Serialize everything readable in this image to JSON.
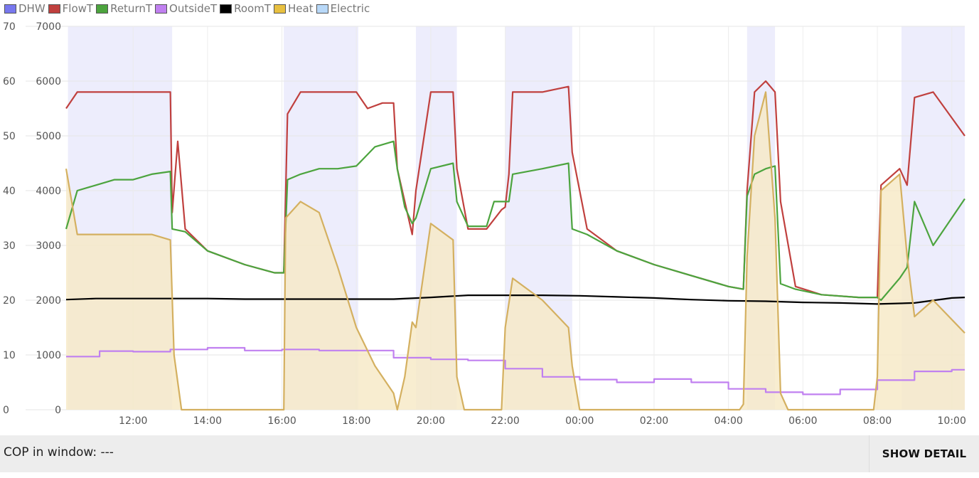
{
  "legend": [
    {
      "name": "DHW",
      "color": "#7878ee"
    },
    {
      "name": "FlowT",
      "color": "#c0403e"
    },
    {
      "name": "ReturnT",
      "color": "#4ca43e"
    },
    {
      "name": "OutsideT",
      "color": "#c080f0"
    },
    {
      "name": "RoomT",
      "color": "#000000"
    },
    {
      "name": "Heat",
      "color": "#e8c040"
    },
    {
      "name": "Electric",
      "color": "#b8d8f8"
    }
  ],
  "footer": {
    "cop_label": "COP in window: ---",
    "detail_button": "SHOW DETAIL"
  },
  "chart_data": {
    "type": "line",
    "x_tick_labels": [
      "12:00",
      "14:00",
      "16:00",
      "18:00",
      "20:00",
      "22:00",
      "00:00",
      "02:00",
      "04:00",
      "06:00",
      "08:00",
      "10:00"
    ],
    "x_tick_hours": [
      12,
      14,
      16,
      18,
      20,
      22,
      24,
      26,
      28,
      30,
      32,
      34
    ],
    "x_range_hours": [
      10.2,
      34.35
    ],
    "y_left": {
      "ticks": [
        0,
        10,
        20,
        30,
        40,
        50,
        60,
        70
      ],
      "range": [
        0,
        70
      ]
    },
    "y_right": {
      "ticks": [
        0,
        1000,
        2000,
        3000,
        4000,
        5000,
        6000,
        7000
      ],
      "range": [
        0,
        7000
      ]
    },
    "grid": true,
    "legend_position": "top-left",
    "dhw_periods": [
      [
        10.25,
        13.05
      ],
      [
        16.05,
        18.05
      ],
      [
        19.6,
        20.7
      ],
      [
        22.0,
        23.8
      ],
      [
        28.5,
        29.25
      ],
      [
        32.65,
        34.35
      ]
    ],
    "series": [
      {
        "name": "FlowT",
        "axis": "left",
        "color": "#c0403e",
        "points": [
          [
            10.2,
            55
          ],
          [
            10.5,
            58
          ],
          [
            11,
            58
          ],
          [
            11.5,
            58
          ],
          [
            12,
            58
          ],
          [
            12.5,
            58
          ],
          [
            13.0,
            58
          ],
          [
            13.05,
            36
          ],
          [
            13.2,
            49
          ],
          [
            13.4,
            33
          ],
          [
            14,
            29
          ],
          [
            15,
            26.5
          ],
          [
            15.8,
            25
          ],
          [
            16.05,
            25
          ],
          [
            16.15,
            54
          ],
          [
            16.5,
            58
          ],
          [
            17,
            58
          ],
          [
            17.5,
            58
          ],
          [
            18,
            58
          ],
          [
            18.3,
            55
          ],
          [
            18.7,
            56
          ],
          [
            19.0,
            56
          ],
          [
            19.1,
            44
          ],
          [
            19.3,
            38
          ],
          [
            19.5,
            32
          ],
          [
            19.6,
            40
          ],
          [
            20.0,
            58
          ],
          [
            20.6,
            58
          ],
          [
            20.7,
            44
          ],
          [
            21.0,
            33
          ],
          [
            21.5,
            33
          ],
          [
            21.9,
            36.5
          ],
          [
            22.0,
            37
          ],
          [
            22.1,
            43
          ],
          [
            22.2,
            58
          ],
          [
            23.0,
            58
          ],
          [
            23.7,
            59
          ],
          [
            23.8,
            47
          ],
          [
            24.2,
            33
          ],
          [
            25,
            29
          ],
          [
            26,
            26.5
          ],
          [
            27,
            24.5
          ],
          [
            28,
            22.5
          ],
          [
            28.4,
            22
          ],
          [
            28.5,
            40
          ],
          [
            28.7,
            58
          ],
          [
            29.0,
            60
          ],
          [
            29.25,
            58
          ],
          [
            29.4,
            38
          ],
          [
            29.8,
            22.5
          ],
          [
            30.5,
            21
          ],
          [
            31.5,
            20.5
          ],
          [
            32.0,
            20.5
          ],
          [
            32.1,
            41
          ],
          [
            32.6,
            44
          ],
          [
            32.8,
            41
          ],
          [
            33.0,
            57
          ],
          [
            33.5,
            58
          ],
          [
            34.35,
            50
          ]
        ]
      },
      {
        "name": "ReturnT",
        "axis": "left",
        "color": "#4ca43e",
        "points": [
          [
            10.2,
            33
          ],
          [
            10.5,
            40
          ],
          [
            11,
            41
          ],
          [
            11.5,
            42
          ],
          [
            12,
            42
          ],
          [
            12.5,
            43
          ],
          [
            13.0,
            43.5
          ],
          [
            13.05,
            33
          ],
          [
            13.4,
            32.5
          ],
          [
            14,
            29
          ],
          [
            15,
            26.5
          ],
          [
            15.8,
            25
          ],
          [
            16.05,
            25
          ],
          [
            16.15,
            42
          ],
          [
            16.5,
            43
          ],
          [
            17,
            44
          ],
          [
            17.5,
            44
          ],
          [
            18,
            44.5
          ],
          [
            18.5,
            48
          ],
          [
            19.0,
            49
          ],
          [
            19.1,
            44
          ],
          [
            19.3,
            37
          ],
          [
            19.5,
            34
          ],
          [
            19.6,
            35
          ],
          [
            20.0,
            44
          ],
          [
            20.6,
            45
          ],
          [
            20.7,
            38
          ],
          [
            21.0,
            33.5
          ],
          [
            21.5,
            33.5
          ],
          [
            21.7,
            38
          ],
          [
            21.9,
            38
          ],
          [
            22.0,
            38
          ],
          [
            22.1,
            38
          ],
          [
            22.2,
            43
          ],
          [
            23.0,
            44
          ],
          [
            23.7,
            45
          ],
          [
            23.8,
            33
          ],
          [
            24.2,
            32
          ],
          [
            25,
            29
          ],
          [
            26,
            26.5
          ],
          [
            27,
            24.5
          ],
          [
            28,
            22.5
          ],
          [
            28.4,
            22
          ],
          [
            28.5,
            39
          ],
          [
            28.7,
            43
          ],
          [
            29.0,
            44
          ],
          [
            29.25,
            44.5
          ],
          [
            29.4,
            23
          ],
          [
            29.8,
            22
          ],
          [
            30.5,
            21
          ],
          [
            31.5,
            20.5
          ],
          [
            32.0,
            20.5
          ],
          [
            32.1,
            20
          ],
          [
            32.6,
            24
          ],
          [
            32.8,
            26
          ],
          [
            33.0,
            38
          ],
          [
            33.5,
            30
          ],
          [
            34.35,
            38.5
          ]
        ]
      },
      {
        "name": "RoomT",
        "axis": "left",
        "color": "#000000",
        "points": [
          [
            10.2,
            20.1
          ],
          [
            11,
            20.3
          ],
          [
            12,
            20.3
          ],
          [
            13,
            20.3
          ],
          [
            14,
            20.3
          ],
          [
            15,
            20.2
          ],
          [
            16,
            20.2
          ],
          [
            17,
            20.2
          ],
          [
            18,
            20.2
          ],
          [
            19,
            20.2
          ],
          [
            20,
            20.5
          ],
          [
            21,
            20.9
          ],
          [
            22,
            20.9
          ],
          [
            23,
            20.9
          ],
          [
            24,
            20.8
          ],
          [
            25,
            20.6
          ],
          [
            26,
            20.4
          ],
          [
            27,
            20.1
          ],
          [
            28,
            19.9
          ],
          [
            29,
            19.8
          ],
          [
            30,
            19.6
          ],
          [
            31,
            19.5
          ],
          [
            32,
            19.3
          ],
          [
            33,
            19.5
          ],
          [
            34,
            20.4
          ],
          [
            34.35,
            20.5
          ]
        ]
      },
      {
        "name": "OutsideT",
        "axis": "left",
        "color": "#c080f0",
        "points": [
          [
            10.2,
            9.7
          ],
          [
            11.1,
            9.7
          ],
          [
            11.1,
            10.7
          ],
          [
            12.0,
            10.7
          ],
          [
            12.0,
            10.6
          ],
          [
            13.0,
            10.6
          ],
          [
            13.0,
            11.0
          ],
          [
            14.0,
            11.0
          ],
          [
            14.0,
            11.3
          ],
          [
            15.0,
            11.3
          ],
          [
            15.0,
            10.8
          ],
          [
            16.0,
            10.8
          ],
          [
            16.0,
            11.0
          ],
          [
            17.0,
            11.0
          ],
          [
            17.0,
            10.8
          ],
          [
            19.0,
            10.8
          ],
          [
            19.0,
            9.5
          ],
          [
            20.0,
            9.5
          ],
          [
            20.0,
            9.2
          ],
          [
            21.0,
            9.2
          ],
          [
            21.0,
            9.0
          ],
          [
            22.0,
            9.0
          ],
          [
            22.0,
            7.5
          ],
          [
            23.0,
            7.5
          ],
          [
            23.0,
            6.0
          ],
          [
            24.0,
            6.0
          ],
          [
            24.0,
            5.5
          ],
          [
            25.0,
            5.5
          ],
          [
            25.0,
            5.0
          ],
          [
            26.0,
            5.0
          ],
          [
            26.0,
            5.6
          ],
          [
            27.0,
            5.6
          ],
          [
            27.0,
            5.0
          ],
          [
            28.0,
            5.0
          ],
          [
            28.0,
            3.8
          ],
          [
            29.0,
            3.8
          ],
          [
            29.0,
            3.2
          ],
          [
            30.0,
            3.2
          ],
          [
            30.0,
            2.8
          ],
          [
            31.0,
            2.8
          ],
          [
            31.0,
            3.7
          ],
          [
            32.0,
            3.7
          ],
          [
            32.0,
            5.4
          ],
          [
            33.0,
            5.4
          ],
          [
            33.0,
            7.0
          ],
          [
            34.0,
            7.0
          ],
          [
            34.0,
            7.3
          ],
          [
            34.35,
            7.3
          ]
        ]
      },
      {
        "name": "Heat",
        "axis": "right",
        "color": "#d4b060",
        "points": [
          [
            10.2,
            4400
          ],
          [
            10.5,
            3200
          ],
          [
            11,
            3200
          ],
          [
            11.5,
            3200
          ],
          [
            12,
            3200
          ],
          [
            12.5,
            3200
          ],
          [
            13.0,
            3100
          ],
          [
            13.1,
            1000
          ],
          [
            13.3,
            0
          ],
          [
            15.9,
            0
          ],
          [
            16.05,
            0
          ],
          [
            16.1,
            3500
          ],
          [
            16.5,
            3800
          ],
          [
            17,
            3600
          ],
          [
            17.5,
            2600
          ],
          [
            18,
            1500
          ],
          [
            18.5,
            800
          ],
          [
            19.0,
            300
          ],
          [
            19.1,
            0
          ],
          [
            19.3,
            600
          ],
          [
            19.5,
            1600
          ],
          [
            19.6,
            1500
          ],
          [
            20.0,
            3400
          ],
          [
            20.6,
            3100
          ],
          [
            20.7,
            600
          ],
          [
            20.9,
            0
          ],
          [
            21.9,
            0
          ],
          [
            22.0,
            1500
          ],
          [
            22.2,
            2400
          ],
          [
            23.0,
            2000
          ],
          [
            23.7,
            1500
          ],
          [
            23.8,
            800
          ],
          [
            24.0,
            0
          ],
          [
            28.3,
            0
          ],
          [
            28.4,
            100
          ],
          [
            28.5,
            2800
          ],
          [
            28.7,
            5000
          ],
          [
            29.0,
            5800
          ],
          [
            29.25,
            3500
          ],
          [
            29.4,
            300
          ],
          [
            29.6,
            0
          ],
          [
            31.9,
            0
          ],
          [
            32.0,
            600
          ],
          [
            32.1,
            4000
          ],
          [
            32.6,
            4300
          ],
          [
            32.8,
            2800
          ],
          [
            33.0,
            1700
          ],
          [
            33.5,
            2000
          ],
          [
            34.35,
            1400
          ]
        ]
      }
    ]
  }
}
